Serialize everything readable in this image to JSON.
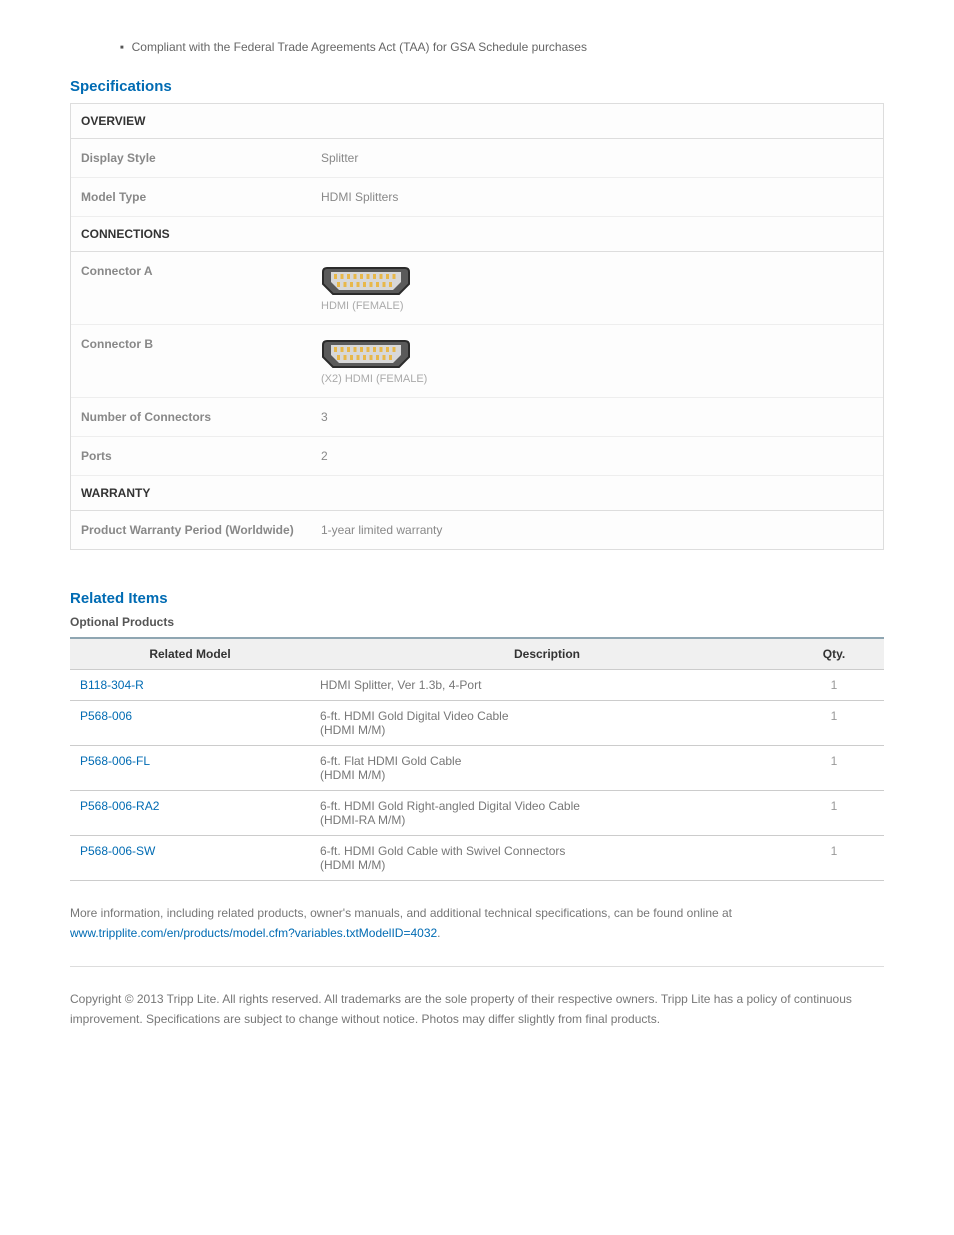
{
  "bullet": "Compliant with the Federal Trade Agreements Act (TAA) for GSA Schedule purchases",
  "specs": {
    "title": "Specifications",
    "groups": [
      {
        "header": "OVERVIEW",
        "rows": [
          {
            "label": "Display Style",
            "value": "Splitter"
          },
          {
            "label": "Model Type",
            "value": "HDMI Splitters"
          }
        ]
      },
      {
        "header": "CONNECTIONS",
        "rows": [
          {
            "label": "Connector A",
            "connector": true,
            "caption": "HDMI (FEMALE)"
          },
          {
            "label": "Connector B",
            "connector": true,
            "caption": "(X2) HDMI (FEMALE)"
          },
          {
            "label": "Number of Connectors",
            "value": "3"
          },
          {
            "label": "Ports",
            "value": "2"
          }
        ]
      },
      {
        "header": "WARRANTY",
        "rows": [
          {
            "label": "Product Warranty Period (Worldwide)",
            "value": "1-year limited warranty"
          }
        ]
      }
    ]
  },
  "related": {
    "title": "Related Items",
    "subtitle": "Optional Products",
    "columns": {
      "model": "Related Model",
      "desc": "Description",
      "qty": "Qty."
    },
    "rows": [
      {
        "model": "B118-304-R",
        "desc_l1": "HDMI Splitter, Ver 1.3b, 4-Port",
        "desc_l2": "",
        "qty": "1"
      },
      {
        "model": "P568-006",
        "desc_l1": "6-ft. HDMI Gold Digital Video Cable",
        "desc_l2": "(HDMI M/M)",
        "qty": "1"
      },
      {
        "model": "P568-006-FL",
        "desc_l1": "6-ft. Flat HDMI Gold Cable",
        "desc_l2": "(HDMI M/M)",
        "qty": "1"
      },
      {
        "model": "P568-006-RA2",
        "desc_l1": "6-ft. HDMI Gold Right-angled Digital Video Cable",
        "desc_l2": "(HDMI-RA M/M)",
        "qty": "1"
      },
      {
        "model": "P568-006-SW",
        "desc_l1": "6-ft. HDMI Gold Cable with Swivel Connectors",
        "desc_l2": "(HDMI M/M)",
        "qty": "1"
      }
    ]
  },
  "footnote": {
    "text": "More information, including related products, owner's manuals, and additional technical specifications, can be found online at ",
    "link": "www.tripplite.com/en/products/model.cfm?variables.txtModelID=4032",
    "suffix": "."
  },
  "copyright": "Copyright © 2013 Tripp Lite. All rights reserved. All trademarks are the sole property of their respective owners. Tripp Lite has a policy of continuous improvement. Specifications are subject to change without notice. Photos may differ slightly from final products.",
  "connector_svg": {
    "shell_fill": "#5a5a5a",
    "shell_stroke": "#2b2b2b",
    "inner_fill": "#d8d8d8",
    "pin_fill": "#e8b84a",
    "width": 90,
    "height": 34
  }
}
